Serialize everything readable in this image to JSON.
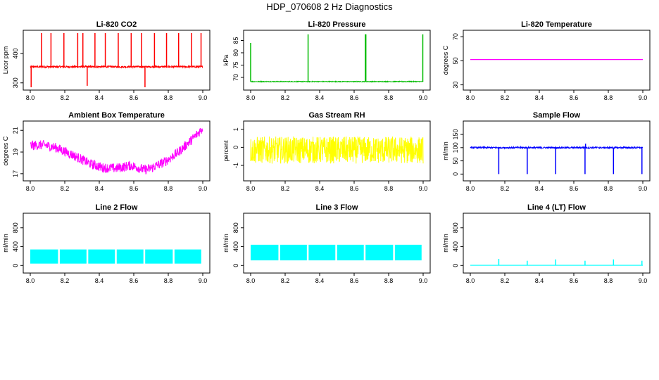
{
  "title": "HDP_070608  2 Hz Diagnostics",
  "chart_data": [
    {
      "type": "line",
      "title": "Li-820 CO2",
      "ylabel": "Licor ppm",
      "xlim": [
        8.0,
        9.0
      ],
      "ylim": [
        285,
        470
      ],
      "yticks": [
        300,
        400
      ],
      "xticks": [
        "8.0",
        "8.2",
        "8.4",
        "8.6",
        "8.8",
        "9.0"
      ],
      "color": "#ff0000",
      "series": [
        {
          "name": "CO2",
          "baseline": 355,
          "noise": 3,
          "spikes": [
            {
              "x": 8.065,
              "y": 470
            },
            {
              "x": 8.12,
              "y": 470
            },
            {
              "x": 8.195,
              "y": 470
            },
            {
              "x": 8.275,
              "y": 470
            },
            {
              "x": 8.305,
              "y": 470
            },
            {
              "x": 8.33,
              "y": 290
            },
            {
              "x": 8.375,
              "y": 470
            },
            {
              "x": 8.435,
              "y": 470
            },
            {
              "x": 8.51,
              "y": 470
            },
            {
              "x": 8.585,
              "y": 470
            },
            {
              "x": 8.645,
              "y": 470
            },
            {
              "x": 8.665,
              "y": 285
            },
            {
              "x": 8.72,
              "y": 470
            },
            {
              "x": 8.79,
              "y": 470
            },
            {
              "x": 8.86,
              "y": 470
            },
            {
              "x": 8.935,
              "y": 470
            },
            {
              "x": 8.99,
              "y": 470
            },
            {
              "x": 8.005,
              "y": 285
            }
          ]
        }
      ]
    },
    {
      "type": "line",
      "title": "Li-820 Pressure",
      "ylabel": "kPa",
      "xlim": [
        8.0,
        9.0
      ],
      "ylim": [
        66,
        88
      ],
      "yticks": [
        70,
        75,
        80,
        85
      ],
      "xticks": [
        "8.0",
        "8.2",
        "8.4",
        "8.6",
        "8.8",
        "9.0"
      ],
      "color": "#00bb00",
      "series": [
        {
          "name": "Pressure",
          "baseline": 68.3,
          "noise": 0.15,
          "spikes": [
            {
              "x": 8.0,
              "y": 84
            },
            {
              "x": 8.333,
              "y": 87.5
            },
            {
              "x": 8.665,
              "y": 87.5
            },
            {
              "x": 8.668,
              "y": 87.5
            },
            {
              "x": 8.998,
              "y": 87.5
            }
          ]
        }
      ]
    },
    {
      "type": "line",
      "title": "Li-820 Temperature",
      "ylabel": "degrees C",
      "xlim": [
        8.0,
        9.0
      ],
      "ylim": [
        28,
        73
      ],
      "yticks": [
        30,
        50,
        70
      ],
      "xticks": [
        "8.0",
        "8.2",
        "8.4",
        "8.6",
        "8.8",
        "9.0"
      ],
      "color": "#ff00ff",
      "series": [
        {
          "name": "Temperature",
          "baseline": 51,
          "noise": 0,
          "spikes": []
        }
      ]
    },
    {
      "type": "line",
      "title": "Ambient Box Temperature",
      "ylabel": "degrees C",
      "xlim": [
        8.0,
        9.0
      ],
      "ylim": [
        16.6,
        21.6
      ],
      "yticks": [
        17,
        19,
        21
      ],
      "xticks": [
        "8.0",
        "8.2",
        "8.4",
        "8.6",
        "8.8",
        "9.0"
      ],
      "color": "#ff00ff",
      "series": [
        {
          "name": "Box Temp",
          "band": 0.45,
          "curve": [
            [
              8.0,
              19.6
            ],
            [
              8.08,
              19.65
            ],
            [
              8.15,
              19.4
            ],
            [
              8.25,
              18.7
            ],
            [
              8.35,
              17.9
            ],
            [
              8.42,
              17.55
            ],
            [
              8.5,
              17.5
            ],
            [
              8.58,
              17.75
            ],
            [
              8.62,
              17.6
            ],
            [
              8.66,
              17.35
            ],
            [
              8.7,
              17.5
            ],
            [
              8.78,
              18.1
            ],
            [
              8.86,
              19.0
            ],
            [
              8.94,
              20.2
            ],
            [
              9.0,
              21.2
            ]
          ]
        }
      ]
    },
    {
      "type": "line",
      "title": "Gas Stream RH",
      "ylabel": "percent",
      "xlim": [
        8.0,
        9.0
      ],
      "ylim": [
        -1.7,
        1.3
      ],
      "yticks": [
        -1,
        0,
        1
      ],
      "xticks": [
        "8.0",
        "8.2",
        "8.4",
        "8.6",
        "8.8",
        "9.0"
      ],
      "color": "#ffff00",
      "series": [
        {
          "name": "RH",
          "baseline": -0.15,
          "noise": 0.75,
          "spikes": []
        }
      ]
    },
    {
      "type": "line",
      "title": "Sample Flow",
      "ylabel": "ml/min",
      "xlim": [
        8.0,
        9.0
      ],
      "ylim": [
        -15,
        190
      ],
      "yticks": [
        0,
        50,
        100,
        150
      ],
      "xticks": [
        "8.0",
        "8.2",
        "8.4",
        "8.6",
        "8.8",
        "9.0"
      ],
      "color": "#0000ff",
      "series": [
        {
          "name": "Sample Flow",
          "baseline": 100,
          "noise": 3,
          "spikes": [
            {
              "x": 8.165,
              "y": 0
            },
            {
              "x": 8.33,
              "y": 0
            },
            {
              "x": 8.495,
              "y": 0
            },
            {
              "x": 8.665,
              "y": 0
            },
            {
              "x": 8.668,
              "y": 115
            },
            {
              "x": 8.83,
              "y": 0
            },
            {
              "x": 8.995,
              "y": 0
            }
          ]
        }
      ]
    },
    {
      "type": "line",
      "title": "Line 2 Flow",
      "ylabel": "ml/min",
      "xlim": [
        8.0,
        9.0
      ],
      "ylim": [
        -100,
        1050
      ],
      "yticks": [
        0,
        400,
        800
      ],
      "xticks": [
        "8.0",
        "8.2",
        "8.4",
        "8.6",
        "8.8",
        "9.0"
      ],
      "color": "#00ffff",
      "series": [
        {
          "name": "Line 2",
          "bandLow": 40,
          "bandHigh": 340,
          "gaps": [
            8.165,
            8.33,
            8.495,
            8.66,
            8.83
          ]
        }
      ]
    },
    {
      "type": "line",
      "title": "Line 3 Flow",
      "ylabel": "ml/min",
      "xlim": [
        8.0,
        9.0
      ],
      "ylim": [
        -100,
        1050
      ],
      "yticks": [
        0,
        400,
        800
      ],
      "xticks": [
        "8.0",
        "8.2",
        "8.4",
        "8.6",
        "8.8",
        "9.0"
      ],
      "color": "#00ffff",
      "series": [
        {
          "name": "Line 3",
          "bandLow": 110,
          "bandHigh": 440,
          "gaps": [
            8.165,
            8.33,
            8.495,
            8.66,
            8.83
          ]
        }
      ]
    },
    {
      "type": "line",
      "title": "Line 4 (LT) Flow",
      "ylabel": "ml/min",
      "xlim": [
        8.0,
        9.0
      ],
      "ylim": [
        -100,
        1050
      ],
      "yticks": [
        0,
        400,
        800
      ],
      "xticks": [
        "8.0",
        "8.2",
        "8.4",
        "8.6",
        "8.8",
        "9.0"
      ],
      "color": "#00ffff",
      "series": [
        {
          "name": "Line 4",
          "baseline": 5,
          "noise": 0,
          "spikes": [
            {
              "x": 8.165,
              "y": 140
            },
            {
              "x": 8.33,
              "y": 100
            },
            {
              "x": 8.495,
              "y": 130
            },
            {
              "x": 8.665,
              "y": 100
            },
            {
              "x": 8.83,
              "y": 130
            },
            {
              "x": 8.995,
              "y": 100
            }
          ]
        }
      ]
    }
  ]
}
